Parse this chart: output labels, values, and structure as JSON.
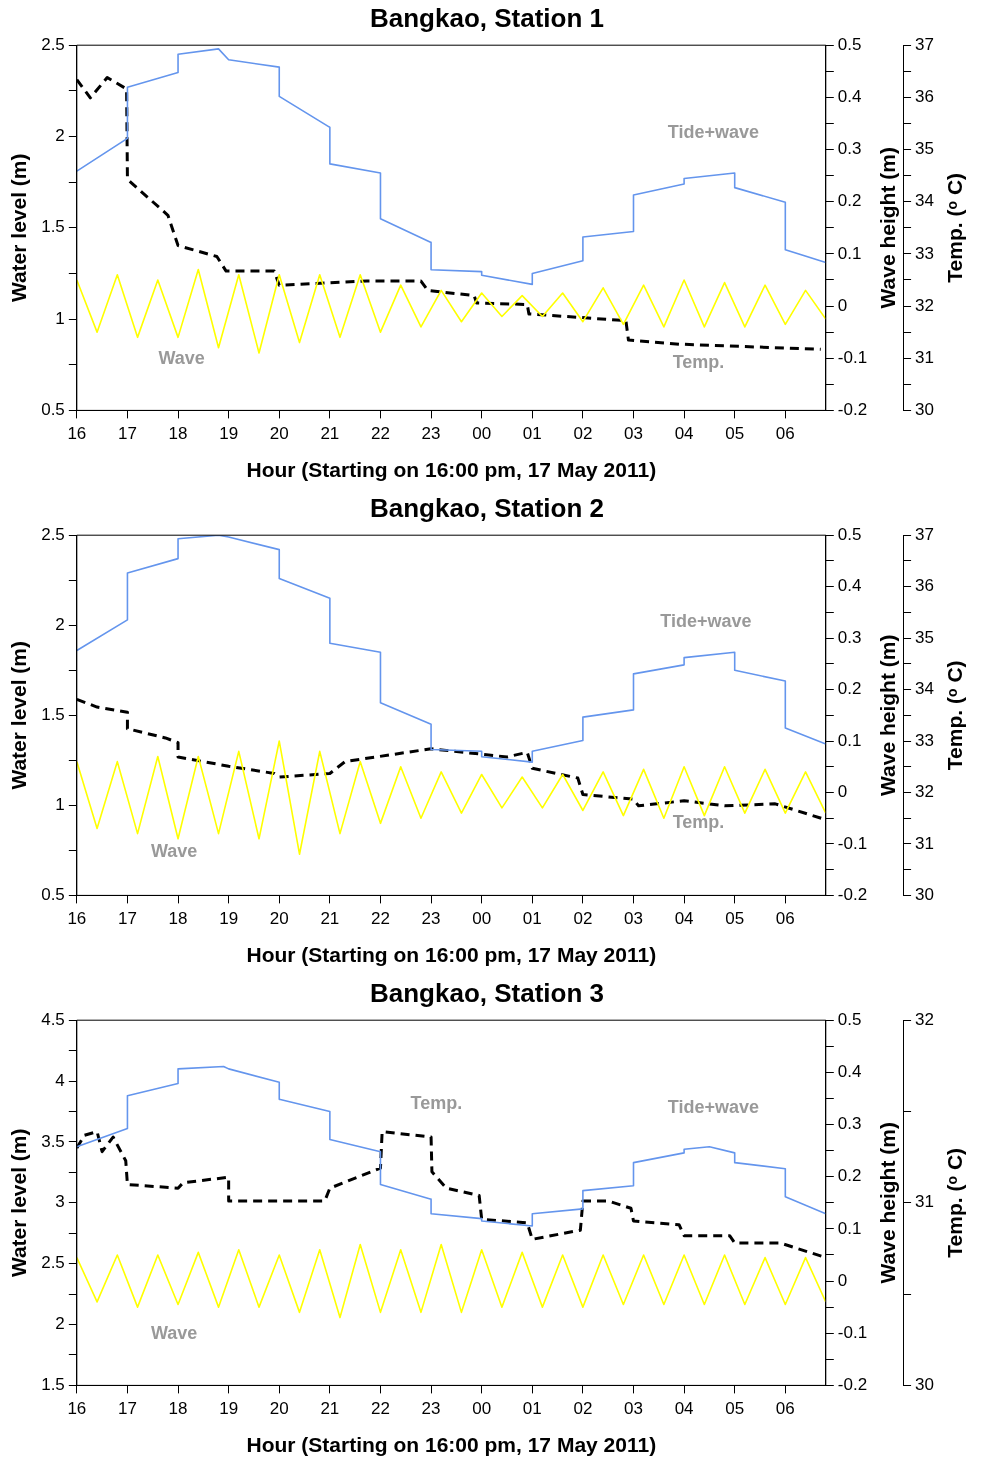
{
  "chart_data": [
    {
      "type": "line",
      "title": "Bangkao, Station 1",
      "xlabel": "Hour (Starting on 16:00 pm, 17 May 2011)",
      "ylabel": "Water level (m)",
      "y2label": "Wave height (m)",
      "y3label": "Temp. (ᵒ C)",
      "marker": "none",
      "legend": false,
      "xlim": [
        "2011-05-17T16:00",
        "2011-05-18T06:48"
      ],
      "xticks": [
        {
          "value": "2011-05-17T16:00",
          "label": "16"
        },
        {
          "value": "2011-05-17T17:00",
          "label": "17"
        },
        {
          "value": "2011-05-17T18:00",
          "label": "18"
        },
        {
          "value": "2011-05-17T19:00",
          "label": "19"
        },
        {
          "value": "2011-05-17T20:00",
          "label": "20"
        },
        {
          "value": "2011-05-17T21:00",
          "label": "21"
        },
        {
          "value": "2011-05-17T22:00",
          "label": "22"
        },
        {
          "value": "2011-05-17T23:00",
          "label": "23"
        },
        {
          "value": "2011-05-18T00:00",
          "label": "00"
        },
        {
          "value": "2011-05-18T01:00",
          "label": "01"
        },
        {
          "value": "2011-05-18T02:00",
          "label": "02"
        },
        {
          "value": "2011-05-18T03:00",
          "label": "03"
        },
        {
          "value": "2011-05-18T04:00",
          "label": "04"
        },
        {
          "value": "2011-05-18T05:00",
          "label": "05"
        },
        {
          "value": "2011-05-18T06:00",
          "label": "06"
        }
      ],
      "ylim": [
        0.5,
        2.5
      ],
      "yticks": [
        0.5,
        {
          "value": 0.75,
          "label": null
        },
        1,
        {
          "value": 1.25,
          "label": null
        },
        1.5,
        {
          "value": 1.75,
          "label": null
        },
        2,
        {
          "value": 2.25,
          "label": null
        },
        2.5
      ],
      "y2lim": [
        -0.2,
        0.5
      ],
      "y2ticks": [
        -0.2,
        {
          "value": -0.15,
          "label": null
        },
        -0.1,
        {
          "value": -0.05,
          "label": null
        },
        0,
        {
          "value": 0.05,
          "label": null
        },
        0.1,
        {
          "value": 0.15,
          "label": null
        },
        0.2,
        {
          "value": 0.25,
          "label": null
        },
        0.3,
        {
          "value": 0.35,
          "label": null
        },
        0.4,
        {
          "value": 0.45,
          "label": null
        },
        0.5
      ],
      "y3lim": [
        30,
        37
      ],
      "y3ticks": [
        30,
        {
          "value": 30.5,
          "label": null
        },
        31,
        {
          "value": 31.5,
          "label": null
        },
        32,
        {
          "value": 32.5,
          "label": null
        },
        33,
        {
          "value": 33.5,
          "label": null
        },
        34,
        {
          "value": 34.5,
          "label": null
        },
        35,
        {
          "value": 35.5,
          "label": null
        },
        36,
        {
          "value": 36.5,
          "label": null
        },
        37
      ],
      "series": [
        {
          "name": "Wave",
          "color": "#ffff00",
          "axis": "y2",
          "x": [
            "2011-05-17T16:00",
            "2011-05-17T16:24",
            "2011-05-17T16:48",
            "2011-05-17T17:12",
            "2011-05-17T17:36",
            "2011-05-17T18:00",
            "2011-05-17T18:24",
            "2011-05-17T18:48",
            "2011-05-17T19:12",
            "2011-05-17T19:36",
            "2011-05-17T20:00",
            "2011-05-17T20:24",
            "2011-05-17T20:48",
            "2011-05-17T21:12",
            "2011-05-17T21:36",
            "2011-05-17T22:00",
            "2011-05-17T22:24",
            "2011-05-17T22:48",
            "2011-05-17T23:12",
            "2011-05-17T23:36",
            "2011-05-18T00:00",
            "2011-05-18T00:24",
            "2011-05-18T00:48",
            "2011-05-18T01:12",
            "2011-05-18T01:36",
            "2011-05-18T02:00",
            "2011-05-18T02:24",
            "2011-05-18T02:48",
            "2011-05-18T03:12",
            "2011-05-18T03:36",
            "2011-05-18T04:00",
            "2011-05-18T04:24",
            "2011-05-18T04:48",
            "2011-05-18T05:12",
            "2011-05-18T05:36",
            "2011-05-18T06:00",
            "2011-05-18T06:24",
            "2011-05-18T06:48"
          ],
          "values": [
            0.05,
            -0.05,
            0.06,
            -0.06,
            0.05,
            -0.06,
            0.07,
            -0.08,
            0.06,
            -0.09,
            0.06,
            -0.07,
            0.06,
            -0.06,
            0.06,
            -0.05,
            0.04,
            -0.04,
            0.03,
            -0.03,
            0.025,
            -0.02,
            0.02,
            -0.02,
            0.025,
            -0.03,
            0.035,
            -0.035,
            0.04,
            -0.04,
            0.05,
            -0.04,
            0.045,
            -0.04,
            0.04,
            -0.035,
            0.03,
            -0.025
          ]
        },
        {
          "name": "Tide+wave",
          "color": "#6495ed",
          "x": [
            "2011-05-17T16:00",
            "2011-05-17T17:00",
            "2011-05-17T17:00",
            "2011-05-17T18:00",
            "2011-05-17T18:00",
            "2011-05-17T18:48",
            "2011-05-17T19:00",
            "2011-05-17T20:00",
            "2011-05-17T20:00",
            "2011-05-17T21:00",
            "2011-05-17T21:00",
            "2011-05-17T22:00",
            "2011-05-17T22:00",
            "2011-05-17T23:00",
            "2011-05-17T23:00",
            "2011-05-18T00:00",
            "2011-05-18T00:00",
            "2011-05-18T01:00",
            "2011-05-18T01:00",
            "2011-05-18T02:00",
            "2011-05-18T02:00",
            "2011-05-18T03:00",
            "2011-05-18T03:00",
            "2011-05-18T04:00",
            "2011-05-18T04:00",
            "2011-05-18T05:00",
            "2011-05-18T05:00",
            "2011-05-18T06:00",
            "2011-05-18T06:00",
            "2011-05-18T06:48"
          ],
          "values": [
            1.81,
            1.99,
            2.27,
            2.35,
            2.45,
            2.48,
            2.42,
            2.38,
            2.22,
            2.05,
            1.85,
            1.8,
            1.55,
            1.42,
            1.27,
            1.26,
            1.24,
            1.19,
            1.25,
            1.32,
            1.45,
            1.48,
            1.68,
            1.74,
            1.77,
            1.8,
            1.72,
            1.64,
            1.38,
            1.31
          ]
        },
        {
          "name": "Temp.",
          "color": "#000000",
          "axis": "y3",
          "line_style": "dashed",
          "x": [
            "2011-05-17T16:00",
            "2011-05-17T16:16",
            "2011-05-17T16:36",
            "2011-05-17T16:59",
            "2011-05-17T17:00",
            "2011-05-17T17:48",
            "2011-05-17T18:00",
            "2011-05-17T18:46",
            "2011-05-17T18:57",
            "2011-05-17T19:54",
            "2011-05-17T20:00",
            "2011-05-17T21:44",
            "2011-05-17T22:48",
            "2011-05-17T22:56",
            "2011-05-17T23:51",
            "2011-05-17T23:54",
            "2011-05-18T00:54",
            "2011-05-18T00:56",
            "2011-05-18T02:51",
            "2011-05-18T02:54",
            "2011-05-18T03:54",
            "2011-05-18T06:42"
          ],
          "values": [
            36.34,
            35.99,
            36.38,
            36.16,
            34.43,
            33.74,
            33.16,
            32.95,
            32.67,
            32.67,
            32.4,
            32.48,
            32.48,
            32.3,
            32.2,
            32.06,
            32.03,
            31.85,
            31.72,
            31.35,
            31.27,
            31.17
          ]
        }
      ]
    },
    {
      "type": "line",
      "title": "Bangkao, Station 2",
      "xlabel": "Hour (Starting on 16:00 pm, 17 May 2011)",
      "ylabel": "Water level (m)",
      "y2label": "Wave height (m)",
      "y3label": "Temp. (ᵒ C)",
      "marker": "none",
      "legend": false,
      "xlim": [
        "2011-05-17T16:00",
        "2011-05-18T06:48"
      ],
      "xticks": [
        {
          "value": "2011-05-17T16:00",
          "label": "16"
        },
        {
          "value": "2011-05-17T17:00",
          "label": "17"
        },
        {
          "value": "2011-05-17T18:00",
          "label": "18"
        },
        {
          "value": "2011-05-17T19:00",
          "label": "19"
        },
        {
          "value": "2011-05-17T20:00",
          "label": "20"
        },
        {
          "value": "2011-05-17T21:00",
          "label": "21"
        },
        {
          "value": "2011-05-17T22:00",
          "label": "22"
        },
        {
          "value": "2011-05-17T23:00",
          "label": "23"
        },
        {
          "value": "2011-05-18T00:00",
          "label": "00"
        },
        {
          "value": "2011-05-18T01:00",
          "label": "01"
        },
        {
          "value": "2011-05-18T02:00",
          "label": "02"
        },
        {
          "value": "2011-05-18T03:00",
          "label": "03"
        },
        {
          "value": "2011-05-18T04:00",
          "label": "04"
        },
        {
          "value": "2011-05-18T05:00",
          "label": "05"
        },
        {
          "value": "2011-05-18T06:00",
          "label": "06"
        }
      ],
      "ylim": [
        0.5,
        2.5
      ],
      "yticks": [
        0.5,
        {
          "value": 0.75,
          "label": null
        },
        1,
        {
          "value": 1.25,
          "label": null
        },
        1.5,
        {
          "value": 1.75,
          "label": null
        },
        2,
        {
          "value": 2.25,
          "label": null
        },
        2.5
      ],
      "y2lim": [
        -0.2,
        0.5
      ],
      "y2ticks": [
        -0.2,
        {
          "value": -0.15,
          "label": null
        },
        -0.1,
        {
          "value": -0.05,
          "label": null
        },
        0,
        {
          "value": 0.05,
          "label": null
        },
        0.1,
        {
          "value": 0.15,
          "label": null
        },
        0.2,
        {
          "value": 0.25,
          "label": null
        },
        0.3,
        {
          "value": 0.35,
          "label": null
        },
        0.4,
        {
          "value": 0.45,
          "label": null
        },
        0.5
      ],
      "y3lim": [
        30,
        37
      ],
      "y3ticks": [
        30,
        {
          "value": 30.5,
          "label": null
        },
        31,
        {
          "value": 31.5,
          "label": null
        },
        32,
        {
          "value": 32.5,
          "label": null
        },
        33,
        {
          "value": 33.5,
          "label": null
        },
        34,
        {
          "value": 34.5,
          "label": null
        },
        35,
        {
          "value": 35.5,
          "label": null
        },
        36,
        {
          "value": 36.5,
          "label": null
        },
        37
      ],
      "series": [
        {
          "name": "Wave",
          "color": "#ffff00",
          "axis": "y2",
          "x": [
            "2011-05-17T16:00",
            "2011-05-17T16:24",
            "2011-05-17T16:48",
            "2011-05-17T17:12",
            "2011-05-17T17:36",
            "2011-05-17T18:00",
            "2011-05-17T18:24",
            "2011-05-17T18:48",
            "2011-05-17T19:12",
            "2011-05-17T19:36",
            "2011-05-17T20:00",
            "2011-05-17T20:24",
            "2011-05-17T20:48",
            "2011-05-17T21:12",
            "2011-05-17T21:36",
            "2011-05-17T22:00",
            "2011-05-17T22:24",
            "2011-05-17T22:48",
            "2011-05-17T23:12",
            "2011-05-17T23:36",
            "2011-05-18T00:00",
            "2011-05-18T00:24",
            "2011-05-18T00:48",
            "2011-05-18T01:12",
            "2011-05-18T01:36",
            "2011-05-18T02:00",
            "2011-05-18T02:24",
            "2011-05-18T02:48",
            "2011-05-18T03:12",
            "2011-05-18T03:36",
            "2011-05-18T04:00",
            "2011-05-18T04:24",
            "2011-05-18T04:48",
            "2011-05-18T05:12",
            "2011-05-18T05:36",
            "2011-05-18T06:00",
            "2011-05-18T06:24",
            "2011-05-18T06:48"
          ],
          "values": [
            0.06,
            -0.07,
            0.06,
            -0.08,
            0.07,
            -0.09,
            0.07,
            -0.08,
            0.08,
            -0.09,
            0.1,
            -0.12,
            0.08,
            -0.08,
            0.06,
            -0.06,
            0.05,
            -0.05,
            0.04,
            -0.04,
            0.035,
            -0.03,
            0.03,
            -0.03,
            0.035,
            -0.035,
            0.04,
            -0.045,
            0.045,
            -0.05,
            0.05,
            -0.045,
            0.05,
            -0.04,
            0.045,
            -0.04,
            0.04,
            -0.04
          ]
        },
        {
          "name": "Tide+wave",
          "color": "#6495ed",
          "x": [
            "2011-05-17T16:00",
            "2011-05-17T17:00",
            "2011-05-17T17:00",
            "2011-05-17T18:00",
            "2011-05-17T18:00",
            "2011-05-17T18:48",
            "2011-05-17T19:00",
            "2011-05-17T20:00",
            "2011-05-17T20:00",
            "2011-05-17T21:00",
            "2011-05-17T21:00",
            "2011-05-17T22:00",
            "2011-05-17T22:00",
            "2011-05-17T23:00",
            "2011-05-17T23:00",
            "2011-05-18T00:00",
            "2011-05-18T00:00",
            "2011-05-18T01:00",
            "2011-05-18T01:00",
            "2011-05-18T02:00",
            "2011-05-18T02:00",
            "2011-05-18T03:00",
            "2011-05-18T03:00",
            "2011-05-18T04:00",
            "2011-05-18T04:00",
            "2011-05-18T05:00",
            "2011-05-18T05:00",
            "2011-05-18T06:00",
            "2011-05-18T06:00",
            "2011-05-18T06:48"
          ],
          "values": [
            1.86,
            2.03,
            2.29,
            2.37,
            2.48,
            2.5,
            2.49,
            2.42,
            2.26,
            2.15,
            1.9,
            1.85,
            1.57,
            1.45,
            1.31,
            1.3,
            1.27,
            1.24,
            1.3,
            1.36,
            1.49,
            1.53,
            1.73,
            1.78,
            1.82,
            1.85,
            1.75,
            1.69,
            1.43,
            1.34
          ]
        },
        {
          "name": "Temp.",
          "color": "#000000",
          "axis": "y3",
          "line_style": "dashed",
          "x": [
            "2011-05-17T16:00",
            "2011-05-17T16:24",
            "2011-05-17T17:00",
            "2011-05-17T17:00",
            "2011-05-17T17:45",
            "2011-05-17T18:00",
            "2011-05-17T18:00",
            "2011-05-17T19:00",
            "2011-05-17T19:54",
            "2011-05-17T20:00",
            "2011-05-17T21:00",
            "2011-05-17T21:18",
            "2011-05-17T23:00",
            "2011-05-18T00:30",
            "2011-05-18T00:54",
            "2011-05-18T01:00",
            "2011-05-18T01:54",
            "2011-05-18T02:00",
            "2011-05-18T03:00",
            "2011-05-18T03:06",
            "2011-05-18T04:00",
            "2011-05-18T04:48",
            "2011-05-18T05:48",
            "2011-05-18T06:48"
          ],
          "values": [
            33.81,
            33.66,
            33.56,
            33.24,
            33.06,
            32.97,
            32.69,
            32.51,
            32.37,
            32.3,
            32.37,
            32.6,
            32.85,
            32.69,
            32.78,
            32.47,
            32.28,
            31.96,
            31.87,
            31.74,
            31.84,
            31.74,
            31.78,
            31.47
          ]
        }
      ]
    },
    {
      "type": "line",
      "title": "Bangkao, Station 3",
      "xlabel": "Hour (Starting on 16:00 pm, 17 May 2011)",
      "ylabel": "Water level (m)",
      "y2label": "Wave height (m)",
      "y3label": "Temp. (ᵒ C)",
      "marker": "none",
      "legend": false,
      "xlim": [
        "2011-05-17T16:00",
        "2011-05-18T06:48"
      ],
      "xticks": [
        {
          "value": "2011-05-17T16:00",
          "label": "16"
        },
        {
          "value": "2011-05-17T17:00",
          "label": "17"
        },
        {
          "value": "2011-05-17T18:00",
          "label": "18"
        },
        {
          "value": "2011-05-17T19:00",
          "label": "19"
        },
        {
          "value": "2011-05-17T20:00",
          "label": "20"
        },
        {
          "value": "2011-05-17T21:00",
          "label": "21"
        },
        {
          "value": "2011-05-17T22:00",
          "label": "22"
        },
        {
          "value": "2011-05-17T23:00",
          "label": "23"
        },
        {
          "value": "2011-05-18T00:00",
          "label": "00"
        },
        {
          "value": "2011-05-18T01:00",
          "label": "01"
        },
        {
          "value": "2011-05-18T02:00",
          "label": "02"
        },
        {
          "value": "2011-05-18T03:00",
          "label": "03"
        },
        {
          "value": "2011-05-18T04:00",
          "label": "04"
        },
        {
          "value": "2011-05-18T05:00",
          "label": "05"
        },
        {
          "value": "2011-05-18T06:00",
          "label": "06"
        }
      ],
      "ylim": [
        1.5,
        4.5
      ],
      "yticks": [
        1.5,
        {
          "value": 1.75,
          "label": null
        },
        2,
        {
          "value": 2.25,
          "label": null
        },
        2.5,
        {
          "value": 2.75,
          "label": null
        },
        3,
        {
          "value": 3.25,
          "label": null
        },
        3.5,
        {
          "value": 3.75,
          "label": null
        },
        4,
        {
          "value": 4.25,
          "label": null
        },
        4.5
      ],
      "y2lim": [
        -0.2,
        0.5
      ],
      "y2ticks": [
        -0.2,
        {
          "value": -0.15,
          "label": null
        },
        -0.1,
        {
          "value": -0.05,
          "label": null
        },
        0,
        {
          "value": 0.05,
          "label": null
        },
        0.1,
        {
          "value": 0.15,
          "label": null
        },
        0.2,
        {
          "value": 0.25,
          "label": null
        },
        0.3,
        {
          "value": 0.35,
          "label": null
        },
        0.4,
        {
          "value": 0.45,
          "label": null
        },
        0.5
      ],
      "y3lim": [
        30,
        32
      ],
      "y3ticks": [
        30,
        {
          "value": 30.5,
          "label": null
        },
        31,
        {
          "value": 31.5,
          "label": null
        },
        32
      ],
      "series": [
        {
          "name": "Wave",
          "color": "#ffff00",
          "axis": "y2",
          "x": [
            "2011-05-17T16:00",
            "2011-05-17T16:24",
            "2011-05-17T16:48",
            "2011-05-17T17:12",
            "2011-05-17T17:36",
            "2011-05-17T18:00",
            "2011-05-17T18:24",
            "2011-05-17T18:48",
            "2011-05-17T19:12",
            "2011-05-17T19:36",
            "2011-05-17T20:00",
            "2011-05-17T20:24",
            "2011-05-17T20:48",
            "2011-05-17T21:12",
            "2011-05-17T21:36",
            "2011-05-17T22:00",
            "2011-05-17T22:24",
            "2011-05-17T22:48",
            "2011-05-17T23:12",
            "2011-05-17T23:36",
            "2011-05-18T00:00",
            "2011-05-18T00:24",
            "2011-05-18T00:48",
            "2011-05-18T01:12",
            "2011-05-18T01:36",
            "2011-05-18T02:00",
            "2011-05-18T02:24",
            "2011-05-18T02:48",
            "2011-05-18T03:12",
            "2011-05-18T03:36",
            "2011-05-18T04:00",
            "2011-05-18T04:24",
            "2011-05-18T04:48",
            "2011-05-18T05:12",
            "2011-05-18T05:36",
            "2011-05-18T06:00",
            "2011-05-18T06:24",
            "2011-05-18T06:48"
          ],
          "values": [
            0.045,
            -0.04,
            0.05,
            -0.05,
            0.05,
            -0.045,
            0.055,
            -0.05,
            0.06,
            -0.05,
            0.05,
            -0.06,
            0.06,
            -0.07,
            0.07,
            -0.06,
            0.06,
            -0.06,
            0.07,
            -0.06,
            0.06,
            -0.05,
            0.055,
            -0.05,
            0.05,
            -0.05,
            0.05,
            -0.045,
            0.05,
            -0.045,
            0.05,
            -0.045,
            0.05,
            -0.045,
            0.045,
            -0.045,
            0.045,
            -0.04
          ]
        },
        {
          "name": "Tide+wave",
          "color": "#6495ed",
          "x": [
            "2011-05-17T16:00",
            "2011-05-17T17:00",
            "2011-05-17T17:00",
            "2011-05-17T18:00",
            "2011-05-17T18:00",
            "2011-05-17T18:54",
            "2011-05-17T19:00",
            "2011-05-17T20:00",
            "2011-05-17T20:00",
            "2011-05-17T21:00",
            "2011-05-17T21:00",
            "2011-05-17T22:00",
            "2011-05-17T22:00",
            "2011-05-17T23:00",
            "2011-05-17T23:00",
            "2011-05-18T00:00",
            "2011-05-18T00:00",
            "2011-05-18T01:00",
            "2011-05-18T01:00",
            "2011-05-18T02:00",
            "2011-05-18T02:00",
            "2011-05-18T03:00",
            "2011-05-18T03:00",
            "2011-05-18T04:00",
            "2011-05-18T04:00",
            "2011-05-18T04:30",
            "2011-05-18T05:00",
            "2011-05-18T05:00",
            "2011-05-18T06:00",
            "2011-05-18T06:00",
            "2011-05-18T06:48"
          ],
          "values": [
            3.46,
            3.61,
            3.88,
            3.98,
            4.1,
            4.12,
            4.1,
            3.99,
            3.85,
            3.75,
            3.52,
            3.42,
            3.15,
            3.03,
            2.91,
            2.87,
            2.85,
            2.81,
            2.91,
            2.95,
            3.1,
            3.14,
            3.33,
            3.41,
            3.44,
            3.46,
            3.41,
            3.33,
            3.28,
            3.05,
            2.91
          ]
        },
        {
          "name": "Temp.",
          "color": "#000000",
          "axis": "y3",
          "line_style": "dashed",
          "x": [
            "2011-05-17T16:00",
            "2011-05-17T16:09",
            "2011-05-17T16:24",
            "2011-05-17T16:30",
            "2011-05-17T16:43",
            "2011-05-17T16:58",
            "2011-05-17T17:00",
            "2011-05-17T18:00",
            "2011-05-17T18:06",
            "2011-05-17T19:00",
            "2011-05-17T19:00",
            "2011-05-17T20:54",
            "2011-05-17T21:00",
            "2011-05-17T22:00",
            "2011-05-17T22:02",
            "2011-05-17T23:00",
            "2011-05-17T23:01",
            "2011-05-17T23:18",
            "2011-05-17T23:57",
            "2011-05-18T00:00",
            "2011-05-18T00:54",
            "2011-05-18T01:00",
            "2011-05-18T01:57",
            "2011-05-18T02:00",
            "2011-05-18T02:30",
            "2011-05-18T02:57",
            "2011-05-18T03:00",
            "2011-05-18T03:54",
            "2011-05-18T04:00",
            "2011-05-18T04:54",
            "2011-05-18T05:00",
            "2011-05-18T05:54",
            "2011-05-18T06:48"
          ],
          "values": [
            31.3,
            31.37,
            31.39,
            31.28,
            31.36,
            31.23,
            31.1,
            31.08,
            31.11,
            31.14,
            31.01,
            31.01,
            31.08,
            31.19,
            31.39,
            31.36,
            31.17,
            31.08,
            31.04,
            30.91,
            30.89,
            30.8,
            30.85,
            31.01,
            31.01,
            30.97,
            30.9,
            30.88,
            30.82,
            30.82,
            30.78,
            30.78,
            30.7
          ]
        }
      ]
    }
  ]
}
